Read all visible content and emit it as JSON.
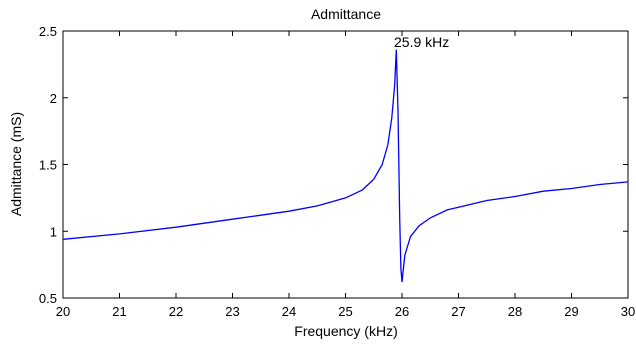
{
  "chart_data": {
    "type": "line",
    "title": "Admittance",
    "xlabel": "Frequency (kHz)",
    "ylabel": "Admittance (mS)",
    "xlim": [
      20,
      30
    ],
    "ylim": [
      0.5,
      2.5
    ],
    "xticks": [
      20,
      21,
      22,
      23,
      24,
      25,
      26,
      27,
      28,
      29,
      30
    ],
    "yticks": [
      0.5,
      1,
      1.5,
      2,
      2.5
    ],
    "ytick_labels": [
      "0.5",
      "1",
      "1.5",
      "2",
      "2.5"
    ],
    "grid": false,
    "line_color": "#0000ff",
    "annotation": {
      "text": "25.9 kHz",
      "x": 25.9,
      "y": 2.36
    },
    "series": [
      {
        "x": [
          20.0,
          21.0,
          22.0,
          23.0,
          23.5,
          24.0,
          24.5,
          25.0,
          25.3,
          25.5,
          25.65,
          25.75,
          25.82,
          25.87,
          25.9,
          25.93,
          25.96,
          25.98,
          26.0,
          26.05,
          26.15,
          26.3,
          26.5,
          26.8,
          27.0,
          27.5,
          28.0,
          28.5,
          29.0,
          29.5,
          30.0
        ],
        "y": [
          0.94,
          0.98,
          1.03,
          1.09,
          1.12,
          1.15,
          1.19,
          1.25,
          1.31,
          1.39,
          1.5,
          1.65,
          1.85,
          2.1,
          2.36,
          1.9,
          1.1,
          0.72,
          0.62,
          0.82,
          0.96,
          1.04,
          1.1,
          1.16,
          1.18,
          1.23,
          1.26,
          1.3,
          1.32,
          1.35,
          1.37
        ]
      }
    ]
  }
}
